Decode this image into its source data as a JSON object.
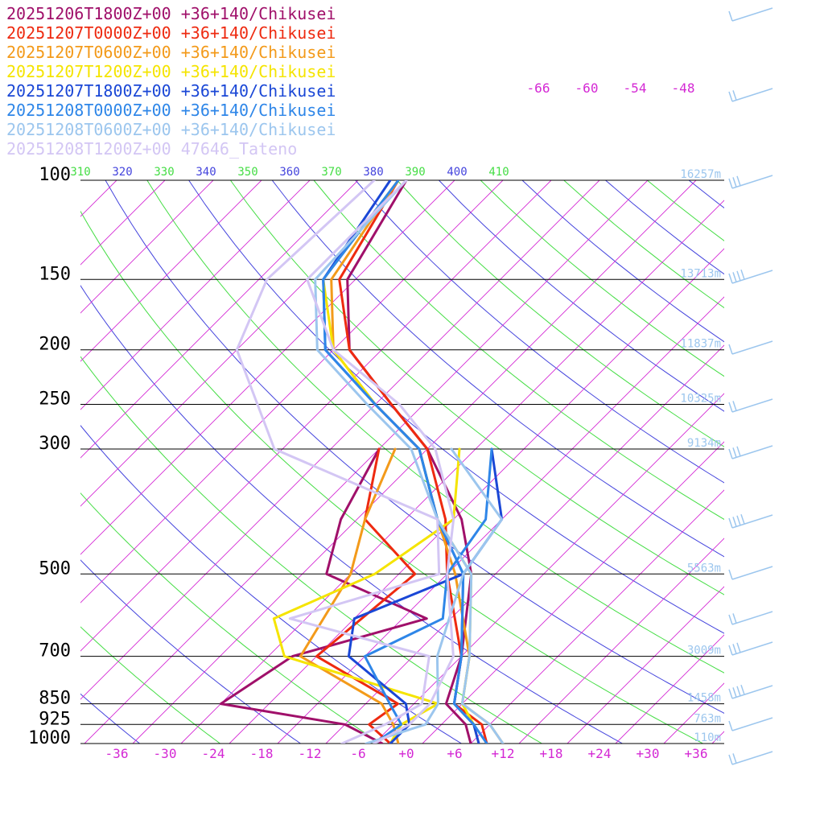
{
  "chart_data": {
    "type": "line",
    "title": "",
    "xlabel": "",
    "ylabel": "",
    "legend_position": "top-left",
    "grid": true,
    "x_axis_label_units": "°C",
    "pressure_levels": [
      "100",
      "150",
      "200",
      "250",
      "300",
      "500",
      "700",
      "850",
      "925",
      "1000"
    ],
    "height_labels": [
      "16257m",
      "13713m",
      "11837m",
      "10325m",
      "9134m",
      "5563m",
      "3009m",
      "1458m",
      "763m",
      "110m"
    ],
    "temperature_ticks": [
      "-36",
      "-30",
      "-24",
      "-18",
      "-12",
      "-6",
      "+0",
      "+6",
      "+12",
      "+18",
      "+24",
      "+30",
      "+36"
    ],
    "upper_temperature_ticks": [
      "-66",
      "-60",
      "-54",
      "-48"
    ],
    "theta_e_labels": [
      "310",
      "320",
      "330",
      "340",
      "350",
      "360",
      "370",
      "380",
      "390",
      "400",
      "410"
    ],
    "series": [
      {
        "name": "20251206T1800Z+00 +36+140/Chikusei",
        "color": "#a0106a",
        "temperature": [
          [
            1000,
            8
          ],
          [
            925,
            5
          ],
          [
            850,
            0
          ],
          [
            700,
            -4
          ],
          [
            500,
            -13
          ],
          [
            400,
            -21
          ],
          [
            300,
            -34
          ],
          [
            250,
            -44
          ],
          [
            200,
            -56
          ],
          [
            150,
            -65
          ],
          [
            100,
            -70
          ]
        ],
        "dewpoint": [
          [
            1000,
            -3
          ],
          [
            925,
            -10
          ],
          [
            850,
            -28
          ],
          [
            700,
            -25
          ],
          [
            600,
            -13
          ],
          [
            500,
            -31
          ],
          [
            400,
            -36
          ],
          [
            300,
            -40
          ]
        ]
      },
      {
        "name": "20251207T0000Z+00 +36+140/Chikusei",
        "color": "#ee2a10",
        "temperature": [
          [
            1000,
            10
          ],
          [
            925,
            7
          ],
          [
            850,
            1
          ],
          [
            700,
            -4
          ],
          [
            500,
            -16
          ],
          [
            400,
            -23
          ],
          [
            300,
            -34
          ],
          [
            250,
            -44
          ],
          [
            200,
            -56
          ],
          [
            150,
            -66
          ],
          [
            100,
            -71
          ]
        ],
        "dewpoint": [
          [
            1000,
            -2
          ],
          [
            925,
            -7
          ],
          [
            850,
            -6
          ],
          [
            700,
            -22
          ],
          [
            500,
            -20
          ],
          [
            400,
            -33
          ],
          [
            300,
            -40
          ]
        ]
      },
      {
        "name": "20251207T0600Z+00 +36+140/Chikusei",
        "color": "#f39a1a",
        "temperature": [
          [
            1000,
            12
          ],
          [
            925,
            8
          ],
          [
            850,
            2
          ],
          [
            700,
            -3
          ],
          [
            500,
            -15
          ],
          [
            400,
            -24
          ],
          [
            300,
            -35
          ],
          [
            250,
            -46
          ],
          [
            200,
            -58
          ],
          [
            150,
            -67
          ],
          [
            100,
            -71
          ]
        ],
        "dewpoint": [
          [
            1000,
            -1
          ],
          [
            925,
            -4
          ],
          [
            850,
            -8
          ],
          [
            700,
            -24
          ],
          [
            500,
            -28
          ],
          [
            400,
            -33
          ],
          [
            300,
            -38
          ]
        ]
      },
      {
        "name": "20251207T1200Z+00 +36+140/Chikusei",
        "color": "#f5e400",
        "temperature": [
          [
            1000,
            9
          ],
          [
            925,
            6
          ],
          [
            850,
            2
          ],
          [
            700,
            -3
          ],
          [
            500,
            -13
          ],
          [
            400,
            -24
          ],
          [
            300,
            -35
          ],
          [
            250,
            -46
          ],
          [
            200,
            -58
          ],
          [
            150,
            -68
          ],
          [
            100,
            -71
          ]
        ],
        "dewpoint": [
          [
            1000,
            -2
          ],
          [
            925,
            -3
          ],
          [
            850,
            -1
          ],
          [
            700,
            -26
          ],
          [
            600,
            -32
          ],
          [
            500,
            -25
          ],
          [
            400,
            -22
          ],
          [
            300,
            -30
          ]
        ]
      },
      {
        "name": "20251207T1800Z+00 +36+140/Chikusei",
        "color": "#1a47d6",
        "temperature": [
          [
            1000,
            9
          ],
          [
            925,
            6
          ],
          [
            850,
            1
          ],
          [
            700,
            -4
          ],
          [
            500,
            -14
          ],
          [
            400,
            -24
          ],
          [
            300,
            -35
          ],
          [
            250,
            -46
          ],
          [
            200,
            -59
          ],
          [
            150,
            -68
          ],
          [
            100,
            -72
          ]
        ],
        "dewpoint": [
          [
            1000,
            -2
          ],
          [
            925,
            -2
          ],
          [
            850,
            -5
          ],
          [
            700,
            -18
          ],
          [
            600,
            -22
          ],
          [
            500,
            -14
          ],
          [
            400,
            -16
          ],
          [
            300,
            -26
          ]
        ]
      },
      {
        "name": "20251208T0000Z+00 +36+140/Chikusei",
        "color": "#2e86e8",
        "temperature": [
          [
            1000,
            10
          ],
          [
            925,
            6
          ],
          [
            850,
            1
          ],
          [
            700,
            -4
          ],
          [
            500,
            -14
          ],
          [
            400,
            -24
          ],
          [
            300,
            -35
          ],
          [
            250,
            -46
          ],
          [
            200,
            -59
          ],
          [
            150,
            -68
          ],
          [
            100,
            -71
          ]
        ],
        "dewpoint": [
          [
            1000,
            -4
          ],
          [
            925,
            -3
          ],
          [
            850,
            -7
          ],
          [
            700,
            -16
          ],
          [
            600,
            -11
          ],
          [
            500,
            -16
          ],
          [
            400,
            -18
          ],
          [
            300,
            -26
          ]
        ]
      },
      {
        "name": "20251208T0600Z+00 +36+140/Chikusei",
        "color": "#9cc6ee",
        "temperature": [
          [
            1000,
            12
          ],
          [
            925,
            8
          ],
          [
            850,
            2
          ],
          [
            700,
            -3
          ],
          [
            500,
            -13
          ],
          [
            400,
            -24
          ],
          [
            300,
            -36
          ],
          [
            250,
            -47
          ],
          [
            200,
            -60
          ],
          [
            150,
            -69
          ],
          [
            100,
            -70
          ]
        ],
        "dewpoint": [
          [
            1000,
            -5
          ],
          [
            925,
            0
          ],
          [
            850,
            -1
          ],
          [
            700,
            -7
          ],
          [
            500,
            -14
          ],
          [
            400,
            -16
          ],
          [
            300,
            -31
          ]
        ]
      },
      {
        "name": "20251208T1200Z+00 47646_Tateno",
        "color": "#d3c6f4",
        "temperature": [
          [
            1000,
            -4
          ],
          [
            925,
            -2
          ],
          [
            850,
            -2
          ],
          [
            700,
            -5
          ],
          [
            500,
            -16
          ],
          [
            400,
            -22
          ],
          [
            300,
            -33
          ],
          [
            250,
            -43
          ],
          [
            200,
            -58
          ],
          [
            150,
            -70
          ],
          [
            100,
            -70
          ]
        ],
        "dewpoint": [
          [
            1000,
            -8
          ],
          [
            925,
            -5
          ],
          [
            850,
            -3
          ],
          [
            700,
            -8
          ],
          [
            600,
            -30
          ],
          [
            500,
            -17
          ],
          [
            400,
            -24
          ],
          [
            300,
            -53
          ],
          [
            200,
            -70
          ],
          [
            150,
            -75
          ],
          [
            100,
            -74
          ]
        ]
      }
    ]
  }
}
